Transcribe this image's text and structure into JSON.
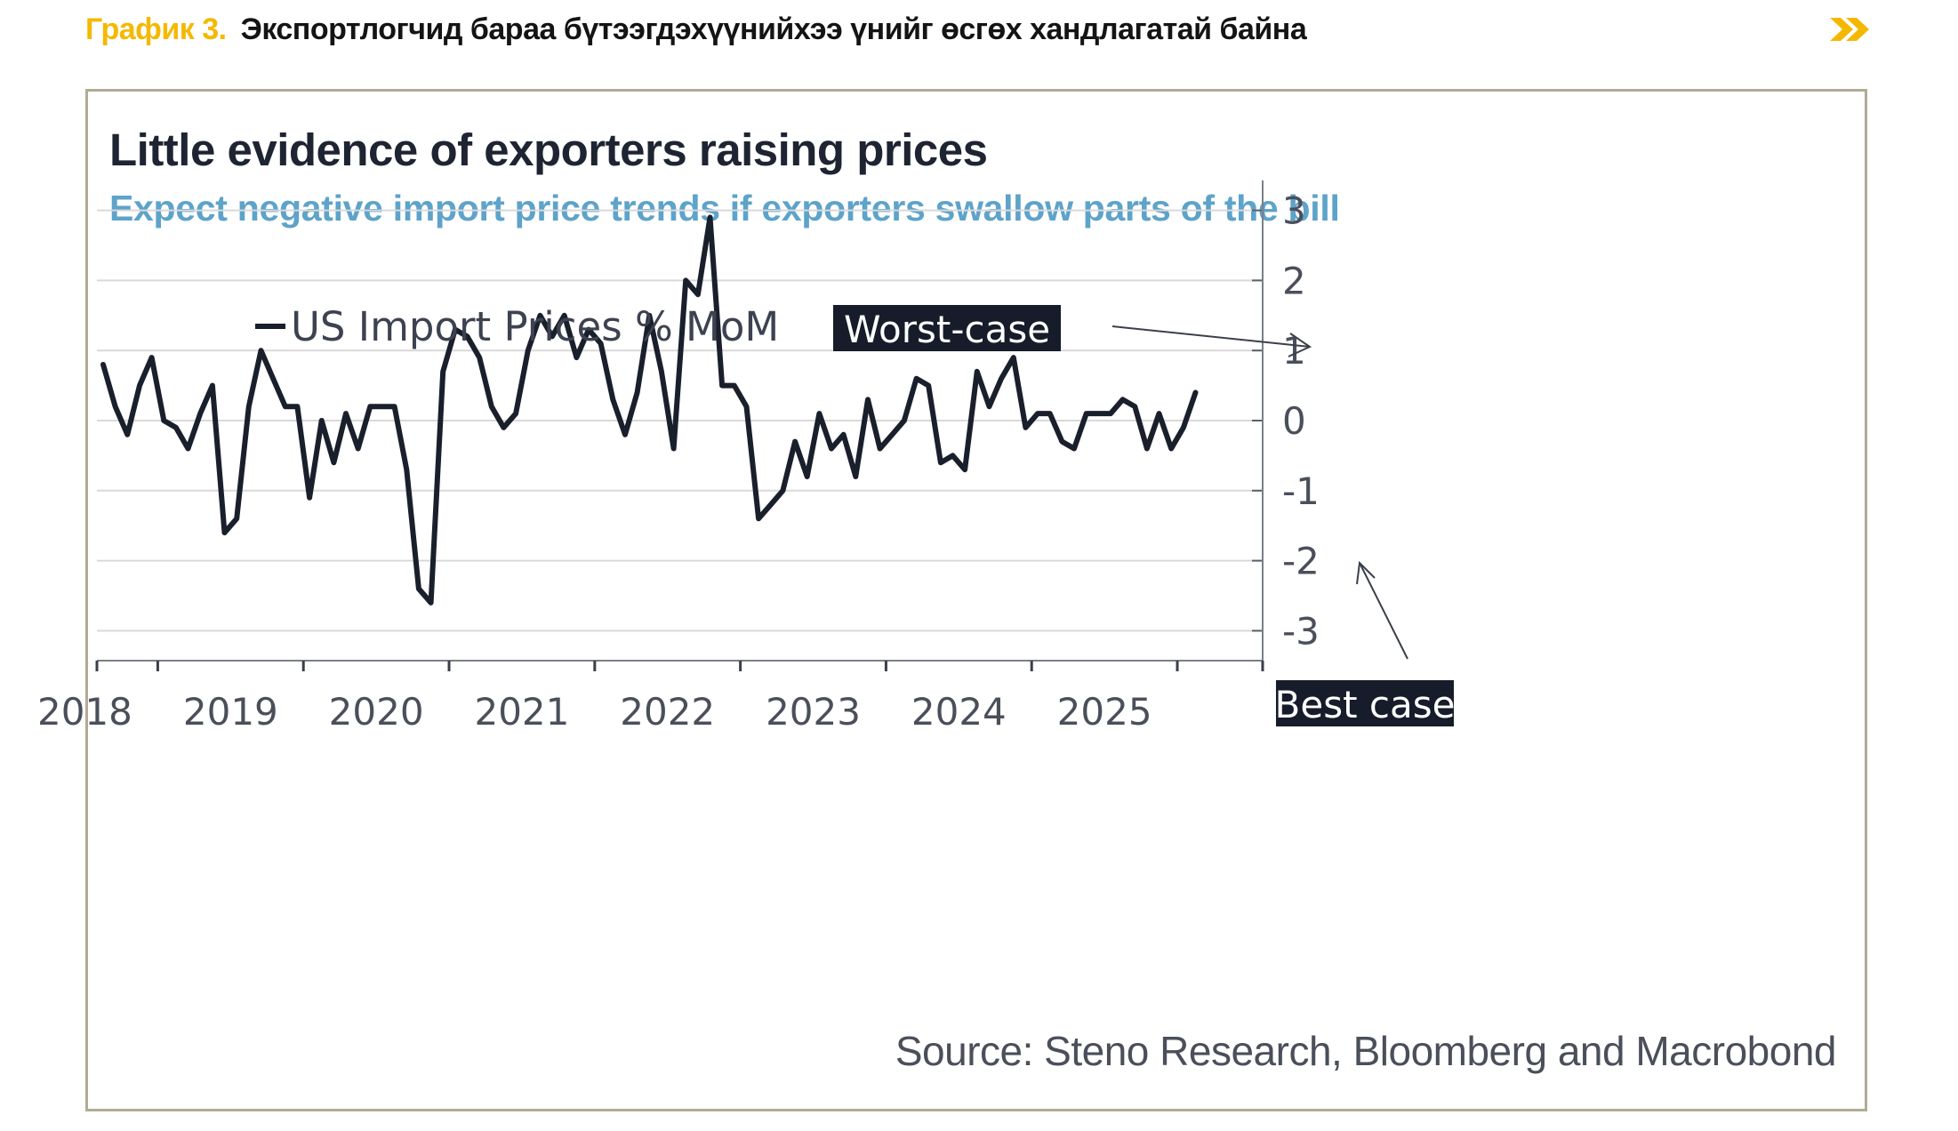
{
  "header": {
    "label": "График 3.",
    "title": "Экспортлогчид бараа бүтээгдэхүүнийхээ үнийг өсгөх хандлагатай байна",
    "arrow_icon": "double-chevron-right-icon",
    "accent_color": "#f5b800"
  },
  "chart": {
    "title": "Little evidence of exporters raising prices",
    "subtitle": "Expect negative import price trends if exporters swallow parts of the bill",
    "source": "Source: Steno Research, Bloomberg and Macrobond",
    "annotations": {
      "worst": "Worst-case",
      "best": "Best case"
    }
  },
  "chart_data": {
    "type": "line",
    "title": "Little evidence of exporters raising prices",
    "subtitle": "Expect negative import price trends if exporters swallow parts of the bill",
    "xlabel": "",
    "ylabel": "",
    "ylim": [
      -3.3,
      3.3
    ],
    "yticks": [
      3,
      2,
      1,
      0,
      -1,
      -2,
      -3
    ],
    "ytick_labels": [
      "3",
      "2",
      "1",
      "0",
      "-1",
      "-2",
      "-3"
    ],
    "xticks": [
      "2018",
      "2019",
      "2020",
      "2021",
      "2022",
      "2023",
      "2024",
      "2025"
    ],
    "grid": true,
    "legend_position": "top-left",
    "line_color": "#1a1f2c",
    "series": [
      {
        "name": "US Import Prices % MoM",
        "start": "2017-08",
        "frequency": "monthly",
        "values": [
          0.8,
          0.2,
          -0.2,
          0.5,
          0.9,
          0.0,
          -0.1,
          -0.4,
          0.1,
          0.5,
          -1.6,
          -1.4,
          0.2,
          1.0,
          0.6,
          0.2,
          0.2,
          -1.1,
          0.0,
          -0.6,
          0.1,
          -0.4,
          0.2,
          0.2,
          0.2,
          -0.7,
          -2.4,
          -2.6,
          0.7,
          1.3,
          1.2,
          0.9,
          0.2,
          -0.1,
          0.1,
          1.0,
          1.5,
          1.2,
          1.5,
          0.9,
          1.3,
          1.1,
          0.3,
          -0.2,
          0.4,
          1.5,
          0.7,
          -0.4,
          2.0,
          1.8,
          2.9,
          0.5,
          0.5,
          0.2,
          -1.4,
          -1.2,
          -1.0,
          -0.3,
          -0.8,
          0.1,
          -0.4,
          -0.2,
          -0.8,
          0.3,
          -0.4,
          -0.2,
          0.0,
          0.6,
          0.5,
          -0.6,
          -0.5,
          -0.7,
          0.7,
          0.2,
          0.6,
          0.9,
          -0.1,
          0.1,
          0.1,
          -0.3,
          -0.4,
          0.1,
          0.1,
          0.1,
          0.3,
          0.2,
          -0.4,
          0.1,
          -0.4,
          -0.1,
          0.4
        ]
      }
    ]
  }
}
